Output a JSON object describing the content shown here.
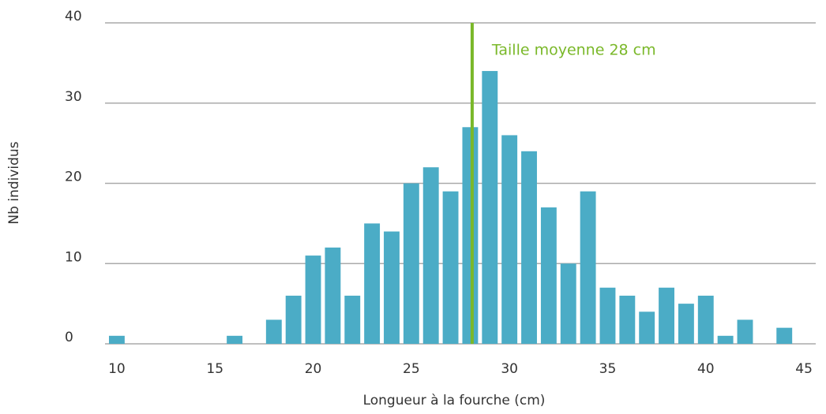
{
  "chart_data": {
    "type": "bar",
    "x": [
      10,
      11,
      12,
      13,
      14,
      15,
      16,
      17,
      18,
      19,
      20,
      21,
      22,
      23,
      24,
      25,
      26,
      27,
      28,
      29,
      30,
      31,
      32,
      33,
      34,
      35,
      36,
      37,
      38,
      39,
      40,
      41,
      42,
      43,
      44
    ],
    "values": [
      1,
      0,
      0,
      0,
      0,
      0,
      1,
      0,
      3,
      6,
      11,
      12,
      6,
      15,
      14,
      20,
      22,
      19,
      27,
      34,
      26,
      24,
      17,
      10,
      19,
      7,
      6,
      4,
      7,
      5,
      6,
      1,
      3,
      0,
      2
    ],
    "color": "#4bacc6",
    "xlim": [
      9.4,
      45.6
    ],
    "xticks": [
      10,
      15,
      20,
      25,
      30,
      35,
      40,
      45
    ],
    "ylim": [
      0,
      40
    ],
    "yticks": [
      0,
      10,
      20,
      30,
      40
    ],
    "grid": true,
    "x_label": "Longueur à la fourche (cm)",
    "y_label": "Nb individus",
    "mean_line": {
      "value": 28.1,
      "label": "Taille moyenne 28 cm",
      "color": "#7ab829"
    }
  }
}
